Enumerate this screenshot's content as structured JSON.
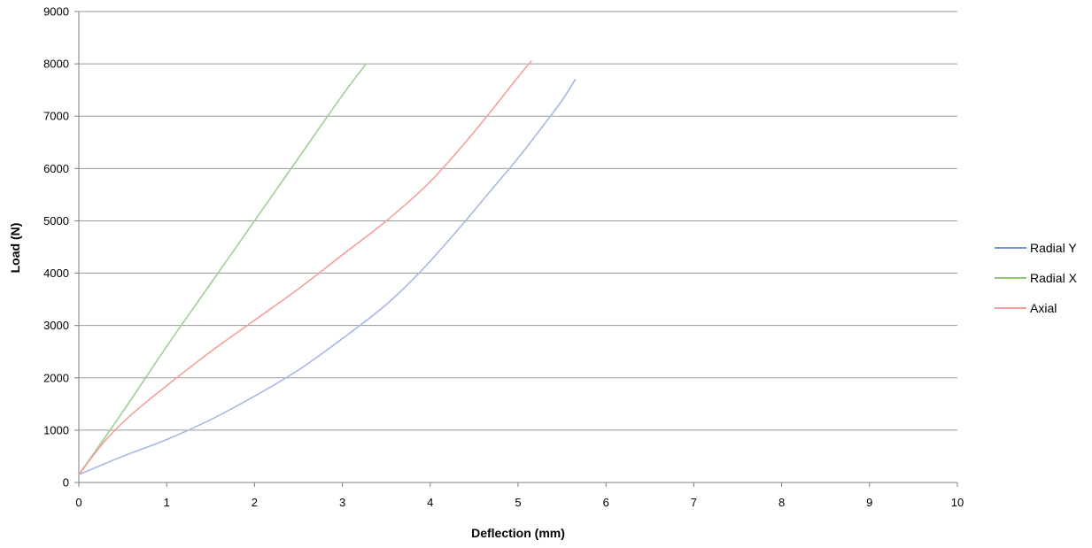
{
  "chart_data": {
    "type": "line",
    "title": "",
    "xlabel": "Deflection (mm)",
    "ylabel": "Load (N)",
    "xlim": [
      0,
      10
    ],
    "ylim": [
      0,
      9000
    ],
    "xticks": [
      0,
      1,
      2,
      3,
      4,
      5,
      6,
      7,
      8,
      9,
      10
    ],
    "yticks": [
      0,
      1000,
      2000,
      3000,
      4000,
      5000,
      6000,
      7000,
      8000,
      9000
    ],
    "grid": "horizontal",
    "legend_position": "right",
    "series": [
      {
        "name": "Radial Y",
        "color": "#a6b9e4",
        "legend_color": "#4472c4",
        "x": [
          0,
          0.5,
          1.0,
          1.5,
          2.0,
          2.5,
          3.0,
          3.5,
          3.9,
          4.3,
          4.7,
          5.0,
          5.3,
          5.5,
          5.65
        ],
        "y": [
          150,
          500,
          820,
          1200,
          1650,
          2150,
          2750,
          3400,
          4050,
          4800,
          5600,
          6200,
          6850,
          7300,
          7700
        ]
      },
      {
        "name": "Radial X",
        "color": "#9ecf94",
        "legend_color": "#70ad47",
        "x": [
          0,
          0.5,
          1.0,
          1.5,
          2.0,
          2.5,
          3.0,
          3.27
        ],
        "y": [
          150,
          1350,
          2600,
          3800,
          5000,
          6200,
          7400,
          8000
        ]
      },
      {
        "name": "Axial",
        "color": "#f2a09a",
        "legend_color": "#ed7d79",
        "x": [
          0,
          0.3,
          0.6,
          1.0,
          1.5,
          2.0,
          2.5,
          3.0,
          3.5,
          4.0,
          4.5,
          5.0,
          5.15
        ],
        "y": [
          150,
          800,
          1300,
          1850,
          2500,
          3100,
          3700,
          4350,
          5000,
          5750,
          6700,
          7750,
          8050
        ]
      }
    ]
  }
}
